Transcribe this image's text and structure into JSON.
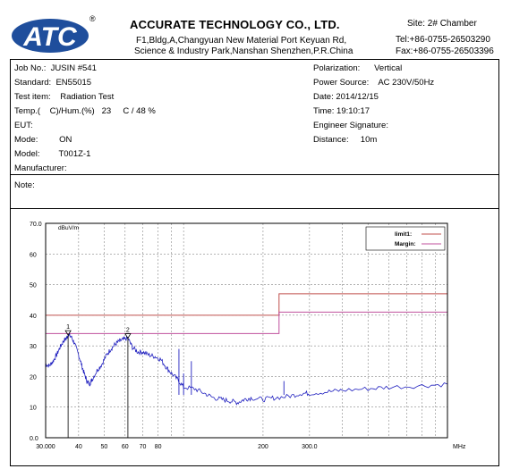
{
  "header": {
    "logo_text": "ATC",
    "registered_mark": "®",
    "company_name": "ACCURATE TECHNOLOGY CO., LTD.",
    "address_line1": "F1,Bldg,A,Changyuan New Material Port Keyuan Rd,",
    "address_line2": "Science & Industry Park,Nanshan Shenzhen,P.R.China",
    "site": "Site:  2# Chamber",
    "tel": "Tel:+86-0755-26503290",
    "fax": "Fax:+86-0755-26503396"
  },
  "info": {
    "job_no": "Job No.:  JUSIN #541",
    "standard": "Standard:  EN55015",
    "test_item": "Test item:    Radiation Test",
    "temp_hum": "Temp.(    C)/Hum.(%)   23     C / 48 %",
    "eut": "EUT:",
    "mode": "Mode:         ON",
    "model": "Model:        T001Z-1",
    "manufacturer": "Manufacturer:",
    "polarization": "Polarization:      Vertical",
    "power_source": "Power Source:    AC 230V/50Hz",
    "date": "Date: 2014/12/15",
    "time": "Time: 19:10:17",
    "engineer": "Engineer Signature:",
    "distance": "Distance:     10m",
    "note": "Note:"
  },
  "chart_data": {
    "type": "line",
    "ylabel": "dBuV/m",
    "xlabel": "MHz",
    "xscale": "log",
    "xlim": [
      30,
      1000
    ],
    "ylim": [
      0,
      70
    ],
    "yticks": [
      0,
      10,
      20,
      30,
      40,
      50,
      60,
      70
    ],
    "ytick_labels": [
      "0.0",
      "10",
      "20",
      "30",
      "40",
      "50",
      "60",
      "70.0"
    ],
    "xticks": [
      30,
      40,
      50,
      60,
      70,
      80,
      200,
      300
    ],
    "xtick_labels": [
      "30.000",
      "40",
      "50",
      "60",
      "70",
      "80",
      "200",
      "300.0"
    ],
    "legend": [
      {
        "name": "limit1:",
        "color": "#c0504d"
      },
      {
        "name": "Margin:",
        "color": "#c0509d"
      }
    ],
    "grid": true,
    "limit1": [
      [
        30,
        40
      ],
      [
        230,
        40
      ],
      [
        230,
        47
      ],
      [
        1000,
        47
      ]
    ],
    "margin": [
      [
        30,
        34
      ],
      [
        230,
        34
      ],
      [
        230,
        41
      ],
      [
        1000,
        41
      ]
    ],
    "markers": [
      {
        "label": "1",
        "x": 36.5,
        "y": 33.5
      },
      {
        "label": "2",
        "x": 61.5,
        "y": 32.5
      }
    ],
    "series": [
      {
        "color": "#1f1fbf",
        "points": [
          [
            30,
            24
          ],
          [
            31,
            23.5
          ],
          [
            32,
            25
          ],
          [
            33,
            27
          ],
          [
            34,
            29.5
          ],
          [
            35,
            31.5
          ],
          [
            36,
            32.5
          ],
          [
            36.5,
            33.5
          ],
          [
            37.5,
            33
          ],
          [
            38.5,
            31
          ],
          [
            40,
            27
          ],
          [
            41,
            24
          ],
          [
            42,
            21
          ],
          [
            43,
            18.5
          ],
          [
            44,
            17.5
          ],
          [
            45,
            19
          ],
          [
            47,
            22
          ],
          [
            49,
            24
          ],
          [
            51,
            27
          ],
          [
            53,
            29
          ],
          [
            55,
            30.5
          ],
          [
            57,
            31.5
          ],
          [
            59,
            32
          ],
          [
            61.5,
            32.5
          ],
          [
            64,
            29.5
          ],
          [
            67,
            28
          ],
          [
            70,
            28
          ],
          [
            74,
            27
          ],
          [
            78,
            26.5
          ],
          [
            82,
            25.5
          ],
          [
            86,
            23
          ],
          [
            90,
            21
          ],
          [
            95,
            19
          ],
          [
            100,
            16.5
          ],
          [
            110,
            16
          ],
          [
            120,
            14.5
          ],
          [
            130,
            13
          ],
          [
            140,
            12.5
          ],
          [
            150,
            12
          ],
          [
            160,
            11.5
          ],
          [
            170,
            12.5
          ],
          [
            180,
            13
          ],
          [
            200,
            12.5
          ],
          [
            220,
            13
          ],
          [
            250,
            13.5
          ],
          [
            280,
            14.5
          ],
          [
            300,
            14.5
          ],
          [
            350,
            15
          ],
          [
            400,
            15.5
          ],
          [
            500,
            16
          ],
          [
            600,
            16.5
          ],
          [
            800,
            17
          ],
          [
            1000,
            17.5
          ]
        ]
      }
    ],
    "spikes": [
      [
        96,
        29
      ],
      [
        100,
        21
      ],
      [
        107,
        25
      ],
      [
        240,
        18.5
      ]
    ]
  }
}
